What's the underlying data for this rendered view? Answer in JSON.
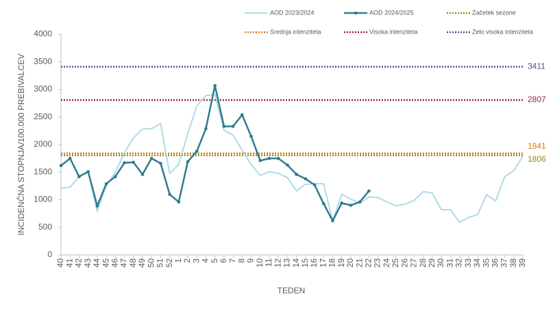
{
  "chart_data": {
    "type": "line",
    "categories": [
      "40",
      "41",
      "42",
      "43",
      "44",
      "45",
      "46",
      "47",
      "48",
      "49",
      "50",
      "51",
      "52",
      "1",
      "2",
      "3",
      "4",
      "5",
      "6",
      "7",
      "8",
      "9",
      "10",
      "11",
      "12",
      "13",
      "14",
      "15",
      "16",
      "17",
      "18",
      "19",
      "20",
      "21",
      "22",
      "23",
      "24",
      "25",
      "26",
      "27",
      "28",
      "29",
      "30",
      "31",
      "32",
      "33",
      "34",
      "35",
      "36",
      "37",
      "38",
      "39"
    ],
    "series": [
      {
        "name": "AOD 2023/2024",
        "color": "#a8d8e2",
        "values": [
          1210,
          1230,
          1420,
          1500,
          800,
          1250,
          1500,
          1850,
          2120,
          2280,
          2290,
          2380,
          1480,
          1640,
          2200,
          2700,
          2890,
          2910,
          2260,
          2170,
          1900,
          1640,
          1440,
          1510,
          1480,
          1400,
          1160,
          1280,
          1290,
          1290,
          620,
          1100,
          1010,
          940,
          1050,
          1040,
          960,
          890,
          920,
          990,
          1150,
          1120,
          820,
          820,
          590,
          680,
          730,
          1090,
          980,
          1420,
          1530,
          1790
        ]
      },
      {
        "name": "AOD 2024/2025",
        "color": "#2e7b8f",
        "markers": true,
        "values": [
          1620,
          1750,
          1420,
          1510,
          890,
          1290,
          1420,
          1670,
          1680,
          1460,
          1750,
          1660,
          1100,
          960,
          1690,
          1880,
          2290,
          3070,
          2330,
          2330,
          2540,
          2150,
          1710,
          1750,
          1750,
          1630,
          1460,
          1380,
          1270,
          930,
          620,
          940,
          900,
          960,
          1160,
          null,
          null,
          null,
          null,
          null,
          null,
          null,
          null,
          null,
          null,
          null,
          null,
          null,
          null,
          null,
          null,
          null
        ]
      }
    ],
    "thresholds": [
      {
        "name": "Začetek sezone",
        "value": 1806,
        "color": "#8c8c1e"
      },
      {
        "name": "Srednja intenziteta",
        "value": 1841,
        "color": "#e07a1f"
      },
      {
        "name": "Visoka intenziteta",
        "value": 2807,
        "color": "#9b2335"
      },
      {
        "name": "Zelo visoka intenziteta",
        "value": 3411,
        "color": "#5b4a8a"
      }
    ],
    "ylabel": "INCIDENČNA  STOPNJA/100.000  PREBIVALCEV",
    "xlabel": "TEDEN",
    "ylim": [
      0,
      4000
    ],
    "yticks": [
      0,
      500,
      1000,
      1500,
      2000,
      2500,
      3000,
      3500,
      4000
    ],
    "grid": false
  }
}
